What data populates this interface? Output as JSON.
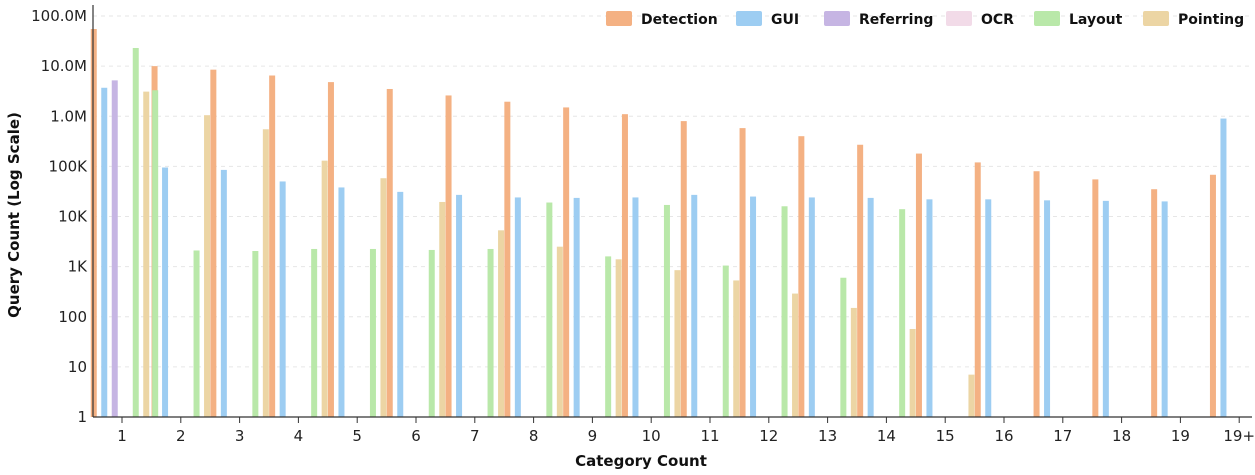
{
  "chart_data": {
    "type": "bar",
    "title": "",
    "xlabel": "Category Count",
    "ylabel": "Query Count (Log Scale)",
    "yscale": "log",
    "ylim": [
      1,
      100000000
    ],
    "yticks": [
      {
        "value": 1,
        "label": "1"
      },
      {
        "value": 10,
        "label": "10"
      },
      {
        "value": 100,
        "label": "100"
      },
      {
        "value": 1000,
        "label": "1K"
      },
      {
        "value": 10000,
        "label": "10K"
      },
      {
        "value": 100000,
        "label": "100K"
      },
      {
        "value": 1000000,
        "label": "1.0M"
      },
      {
        "value": 10000000,
        "label": "10.0M"
      },
      {
        "value": 100000000,
        "label": "100.0M"
      }
    ],
    "grid": true,
    "legend_position": "top-right",
    "categories": [
      "1",
      "2",
      "3",
      "4",
      "5",
      "6",
      "7",
      "8",
      "9",
      "10",
      "11",
      "12",
      "13",
      "14",
      "15",
      "16",
      "17",
      "18",
      "19",
      "19+"
    ],
    "series": [
      {
        "name": "Detection",
        "color": "#f4b183",
        "values": [
          55000000,
          10000000,
          8500000,
          6500000,
          4800000,
          3500000,
          2600000,
          1950000,
          1500000,
          1100000,
          800000,
          580000,
          400000,
          270000,
          180000,
          120000,
          80000,
          55000,
          35000,
          68000
        ]
      },
      {
        "name": "GUI",
        "color": "#9dcdf2",
        "values": [
          3700000,
          95000,
          85000,
          50000,
          38000,
          31000,
          27000,
          24000,
          23500,
          24000,
          27000,
          25000,
          24000,
          23500,
          22000,
          22000,
          21000,
          20500,
          20000,
          900000
        ]
      },
      {
        "name": "Referring",
        "color": "#c6b5e3",
        "values": [
          5200000,
          null,
          null,
          null,
          null,
          null,
          null,
          null,
          null,
          null,
          null,
          null,
          null,
          null,
          null,
          null,
          null,
          null,
          null,
          null
        ]
      },
      {
        "name": "OCR",
        "color": "#f2dbe8",
        "values": [
          null,
          null,
          null,
          null,
          null,
          null,
          null,
          null,
          null,
          null,
          null,
          null,
          null,
          null,
          null,
          null,
          null,
          null,
          null,
          null
        ]
      },
      {
        "name": "Layout",
        "color": "#b9e8a9",
        "values": [
          23000000,
          2100,
          2050,
          2250,
          2250,
          2150,
          2250,
          19000,
          1600,
          17000,
          1050,
          16000,
          600,
          14000,
          null,
          null,
          null,
          null,
          null,
          null
        ]
      },
      {
        "name": "Pointing",
        "color": "#ecd5a4",
        "values": [
          3100000,
          1050000,
          550000,
          130000,
          58000,
          19500,
          5300,
          2500,
          1400,
          850,
          530,
          290,
          150,
          57,
          7,
          null,
          null,
          null,
          null,
          null
        ]
      }
    ],
    "extra_bars": [
      {
        "category": "1",
        "color": "#b9e8a9",
        "value": 3300000
      }
    ]
  }
}
